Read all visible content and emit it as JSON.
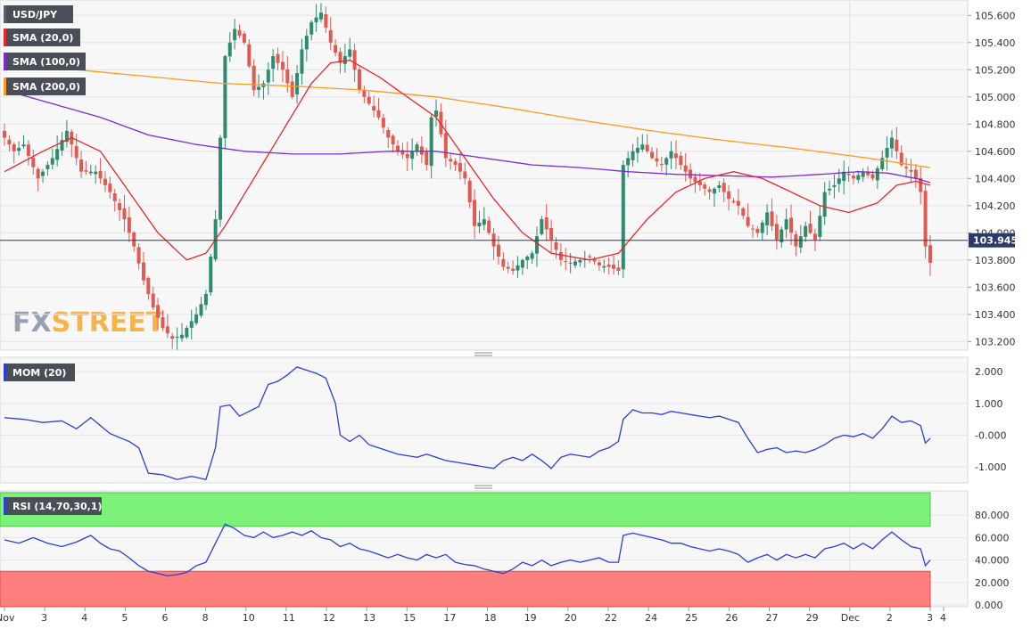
{
  "chart_data": [
    {
      "type": "candlestick",
      "title": "USD/JPY",
      "watermark": {
        "part1": "FX",
        "part2": "STREET"
      },
      "indicators": [
        "SMA (20,0)",
        "SMA (100,0)",
        "SMA (200,0)"
      ],
      "indicator_colors": [
        "#e8262a",
        "#7a2bd6",
        "#ff9a1f"
      ],
      "ylim": [
        103.15,
        105.7
      ],
      "y_ticks": [
        "105.600",
        "105.400",
        "105.200",
        "105.000",
        "104.800",
        "104.600",
        "104.400",
        "104.200",
        "104.000",
        "103.800",
        "103.600",
        "103.400",
        "103.200"
      ],
      "last_price": "103.945",
      "x_ticks": [
        "Nov",
        "3",
        "4",
        "5",
        "6",
        "8",
        "10",
        "11",
        "12",
        "13",
        "15",
        "17",
        "18",
        "19",
        "20",
        "22",
        "24",
        "25",
        "26",
        "27",
        "29",
        "Dec",
        "2",
        "3",
        "4"
      ],
      "up_color": "#2e8b6e",
      "down_color": "#e05a52",
      "anchors_close": [
        [
          0,
          104.7
        ],
        [
          2,
          104.6
        ],
        [
          4,
          104.65
        ],
        [
          7,
          104.4
        ],
        [
          10,
          104.55
        ],
        [
          13,
          104.75
        ],
        [
          16,
          104.45
        ],
        [
          19,
          104.45
        ],
        [
          22,
          104.3
        ],
        [
          25,
          104.1
        ],
        [
          27,
          103.9
        ],
        [
          29,
          103.65
        ],
        [
          31,
          103.45
        ],
        [
          33,
          103.3
        ],
        [
          35,
          103.22
        ],
        [
          37,
          103.25
        ],
        [
          40,
          103.4
        ],
        [
          42,
          103.55
        ],
        [
          44,
          104.1
        ],
        [
          46,
          105.3
        ],
        [
          48,
          105.5
        ],
        [
          50,
          105.4
        ],
        [
          52,
          105.05
        ],
        [
          54,
          105.1
        ],
        [
          56,
          105.3
        ],
        [
          58,
          105.2
        ],
        [
          60,
          105.0
        ],
        [
          62,
          105.35
        ],
        [
          64,
          105.55
        ],
        [
          66,
          105.62
        ],
        [
          68,
          105.4
        ],
        [
          70,
          105.25
        ],
        [
          72,
          105.35
        ],
        [
          74,
          105.05
        ],
        [
          76,
          104.95
        ],
        [
          78,
          104.85
        ],
        [
          80,
          104.7
        ],
        [
          82,
          104.6
        ],
        [
          84,
          104.55
        ],
        [
          86,
          104.65
        ],
        [
          88,
          104.5
        ],
        [
          89,
          104.85
        ],
        [
          90,
          104.9
        ],
        [
          92,
          104.55
        ],
        [
          94,
          104.5
        ],
        [
          96,
          104.4
        ],
        [
          98,
          104.05
        ],
        [
          100,
          104.1
        ],
        [
          102,
          103.9
        ],
        [
          104,
          103.75
        ],
        [
          106,
          103.72
        ],
        [
          108,
          103.8
        ],
        [
          110,
          103.85
        ],
        [
          112,
          104.1
        ],
        [
          114,
          103.95
        ],
        [
          116,
          103.8
        ],
        [
          118,
          103.78
        ],
        [
          120,
          103.8
        ],
        [
          122,
          103.82
        ],
        [
          124,
          103.76
        ],
        [
          126,
          103.75
        ],
        [
          128,
          103.72
        ],
        [
          129,
          104.5
        ],
        [
          131,
          104.6
        ],
        [
          133,
          104.65
        ],
        [
          135,
          104.55
        ],
        [
          137,
          104.5
        ],
        [
          139,
          104.6
        ],
        [
          141,
          104.5
        ],
        [
          143,
          104.4
        ],
        [
          145,
          104.35
        ],
        [
          147,
          104.3
        ],
        [
          149,
          104.35
        ],
        [
          151,
          104.25
        ],
        [
          153,
          104.2
        ],
        [
          155,
          104.05
        ],
        [
          157,
          104.0
        ],
        [
          159,
          104.15
        ],
        [
          161,
          103.95
        ],
        [
          163,
          104.1
        ],
        [
          165,
          103.9
        ],
        [
          167,
          104.05
        ],
        [
          169,
          103.95
        ],
        [
          171,
          104.3
        ],
        [
          173,
          104.35
        ],
        [
          175,
          104.45
        ],
        [
          177,
          104.4
        ],
        [
          179,
          104.45
        ],
        [
          181,
          104.4
        ],
        [
          183,
          104.55
        ],
        [
          185,
          104.7
        ],
        [
          187,
          104.5
        ],
        [
          189,
          104.45
        ],
        [
          190,
          104.4
        ],
        [
          191,
          104.3
        ],
        [
          192,
          103.9
        ],
        [
          193,
          103.78
        ]
      ],
      "sma20": [
        [
          0,
          104.45
        ],
        [
          8,
          104.6
        ],
        [
          14,
          104.7
        ],
        [
          20,
          104.6
        ],
        [
          26,
          104.3
        ],
        [
          32,
          104.0
        ],
        [
          38,
          103.8
        ],
        [
          42,
          103.85
        ],
        [
          46,
          104.05
        ],
        [
          52,
          104.4
        ],
        [
          58,
          104.75
        ],
        [
          64,
          105.1
        ],
        [
          68,
          105.25
        ],
        [
          72,
          105.27
        ],
        [
          78,
          105.15
        ],
        [
          84,
          105.0
        ],
        [
          90,
          104.85
        ],
        [
          96,
          104.55
        ],
        [
          102,
          104.25
        ],
        [
          108,
          104.0
        ],
        [
          114,
          103.85
        ],
        [
          122,
          103.8
        ],
        [
          128,
          103.85
        ],
        [
          134,
          104.1
        ],
        [
          140,
          104.3
        ],
        [
          146,
          104.4
        ],
        [
          152,
          104.45
        ],
        [
          158,
          104.4
        ],
        [
          164,
          104.3
        ],
        [
          170,
          104.2
        ],
        [
          176,
          104.15
        ],
        [
          182,
          104.22
        ],
        [
          186,
          104.35
        ],
        [
          190,
          104.38
        ],
        [
          193,
          104.35
        ]
      ],
      "sma100": [
        [
          0,
          105.05
        ],
        [
          10,
          104.95
        ],
        [
          20,
          104.85
        ],
        [
          30,
          104.72
        ],
        [
          40,
          104.65
        ],
        [
          50,
          104.6
        ],
        [
          60,
          104.58
        ],
        [
          70,
          104.58
        ],
        [
          80,
          104.6
        ],
        [
          90,
          104.6
        ],
        [
          100,
          104.55
        ],
        [
          110,
          104.5
        ],
        [
          120,
          104.48
        ],
        [
          130,
          104.45
        ],
        [
          140,
          104.43
        ],
        [
          150,
          104.42
        ],
        [
          160,
          104.41
        ],
        [
          170,
          104.43
        ],
        [
          178,
          104.45
        ],
        [
          184,
          104.44
        ],
        [
          190,
          104.4
        ],
        [
          193,
          104.37
        ]
      ],
      "sma200": [
        [
          0,
          105.2
        ],
        [
          15,
          105.2
        ],
        [
          30,
          105.15
        ],
        [
          45,
          105.1
        ],
        [
          60,
          105.08
        ],
        [
          75,
          105.05
        ],
        [
          90,
          105.0
        ],
        [
          105,
          104.92
        ],
        [
          120,
          104.83
        ],
        [
          135,
          104.75
        ],
        [
          150,
          104.68
        ],
        [
          165,
          104.62
        ],
        [
          180,
          104.55
        ],
        [
          193,
          104.48
        ]
      ]
    },
    {
      "type": "line",
      "title": "MOM (20)",
      "color": "#2b3fd6",
      "ylim": [
        -1.45,
        2.4
      ],
      "y_ticks": [
        "2.000",
        "1.000",
        "-0.000",
        "-1.000"
      ],
      "anchors": [
        [
          0,
          0.55
        ],
        [
          4,
          0.5
        ],
        [
          8,
          0.4
        ],
        [
          12,
          0.45
        ],
        [
          15,
          0.2
        ],
        [
          18,
          0.55
        ],
        [
          22,
          0.05
        ],
        [
          26,
          -0.2
        ],
        [
          28,
          -0.4
        ],
        [
          30,
          -1.2
        ],
        [
          33,
          -1.25
        ],
        [
          36,
          -1.4
        ],
        [
          39,
          -1.3
        ],
        [
          42,
          -1.4
        ],
        [
          44,
          -0.4
        ],
        [
          45,
          0.9
        ],
        [
          47,
          0.95
        ],
        [
          49,
          0.6
        ],
        [
          51,
          0.75
        ],
        [
          53,
          0.9
        ],
        [
          55,
          1.6
        ],
        [
          57,
          1.7
        ],
        [
          59,
          1.9
        ],
        [
          61,
          2.15
        ],
        [
          63,
          2.05
        ],
        [
          65,
          1.95
        ],
        [
          67,
          1.8
        ],
        [
          69,
          1.0
        ],
        [
          70,
          0.0
        ],
        [
          72,
          -0.2
        ],
        [
          74,
          0.0
        ],
        [
          76,
          -0.3
        ],
        [
          78,
          -0.4
        ],
        [
          82,
          -0.6
        ],
        [
          86,
          -0.7
        ],
        [
          88,
          -0.6
        ],
        [
          92,
          -0.8
        ],
        [
          96,
          -0.9
        ],
        [
          100,
          -1.0
        ],
        [
          102,
          -1.05
        ],
        [
          104,
          -0.8
        ],
        [
          106,
          -0.7
        ],
        [
          108,
          -0.8
        ],
        [
          110,
          -0.6
        ],
        [
          112,
          -0.8
        ],
        [
          114,
          -1.05
        ],
        [
          116,
          -0.7
        ],
        [
          118,
          -0.6
        ],
        [
          120,
          -0.65
        ],
        [
          122,
          -0.7
        ],
        [
          124,
          -0.5
        ],
        [
          126,
          -0.4
        ],
        [
          128,
          -0.2
        ],
        [
          129,
          0.5
        ],
        [
          131,
          0.8
        ],
        [
          133,
          0.7
        ],
        [
          135,
          0.7
        ],
        [
          137,
          0.65
        ],
        [
          139,
          0.75
        ],
        [
          141,
          0.7
        ],
        [
          143,
          0.65
        ],
        [
          145,
          0.6
        ],
        [
          147,
          0.55
        ],
        [
          149,
          0.6
        ],
        [
          151,
          0.5
        ],
        [
          153,
          0.4
        ],
        [
          155,
          -0.1
        ],
        [
          157,
          -0.55
        ],
        [
          159,
          -0.45
        ],
        [
          161,
          -0.4
        ],
        [
          163,
          -0.55
        ],
        [
          165,
          -0.5
        ],
        [
          167,
          -0.55
        ],
        [
          169,
          -0.45
        ],
        [
          171,
          -0.3
        ],
        [
          173,
          -0.1
        ],
        [
          175,
          0.0
        ],
        [
          177,
          -0.05
        ],
        [
          179,
          0.05
        ],
        [
          181,
          -0.1
        ],
        [
          183,
          0.2
        ],
        [
          185,
          0.6
        ],
        [
          187,
          0.4
        ],
        [
          189,
          0.45
        ],
        [
          191,
          0.3
        ],
        [
          192,
          -0.25
        ],
        [
          193,
          -0.1
        ]
      ]
    },
    {
      "type": "line",
      "title": "RSI (14,70,30,1)",
      "color": "#2b3fd6",
      "overbought": 70,
      "oversold": 30,
      "ylim": [
        0,
        100
      ],
      "y_ticks": [
        "80.000",
        "60.000",
        "40.000",
        "20.000",
        "0.000"
      ],
      "anchors": [
        [
          0,
          58
        ],
        [
          3,
          55
        ],
        [
          6,
          60
        ],
        [
          9,
          55
        ],
        [
          12,
          52
        ],
        [
          15,
          56
        ],
        [
          18,
          62
        ],
        [
          20,
          55
        ],
        [
          22,
          50
        ],
        [
          24,
          48
        ],
        [
          26,
          42
        ],
        [
          28,
          35
        ],
        [
          30,
          30
        ],
        [
          32,
          28
        ],
        [
          34,
          26
        ],
        [
          36,
          27
        ],
        [
          38,
          29
        ],
        [
          40,
          35
        ],
        [
          42,
          38
        ],
        [
          44,
          55
        ],
        [
          46,
          72
        ],
        [
          48,
          68
        ],
        [
          50,
          62
        ],
        [
          52,
          60
        ],
        [
          54,
          65
        ],
        [
          56,
          60
        ],
        [
          58,
          62
        ],
        [
          60,
          65
        ],
        [
          62,
          62
        ],
        [
          64,
          66
        ],
        [
          66,
          60
        ],
        [
          68,
          58
        ],
        [
          70,
          52
        ],
        [
          72,
          55
        ],
        [
          74,
          50
        ],
        [
          76,
          48
        ],
        [
          78,
          45
        ],
        [
          80,
          42
        ],
        [
          82,
          45
        ],
        [
          84,
          42
        ],
        [
          86,
          40
        ],
        [
          88,
          45
        ],
        [
          90,
          42
        ],
        [
          92,
          45
        ],
        [
          94,
          38
        ],
        [
          96,
          36
        ],
        [
          98,
          35
        ],
        [
          100,
          32
        ],
        [
          102,
          30
        ],
        [
          104,
          28
        ],
        [
          106,
          32
        ],
        [
          108,
          38
        ],
        [
          110,
          35
        ],
        [
          112,
          40
        ],
        [
          114,
          35
        ],
        [
          116,
          38
        ],
        [
          118,
          40
        ],
        [
          120,
          38
        ],
        [
          122,
          40
        ],
        [
          124,
          42
        ],
        [
          126,
          38
        ],
        [
          128,
          38
        ],
        [
          129,
          62
        ],
        [
          131,
          64
        ],
        [
          133,
          62
        ],
        [
          135,
          60
        ],
        [
          137,
          58
        ],
        [
          139,
          55
        ],
        [
          141,
          55
        ],
        [
          143,
          52
        ],
        [
          145,
          50
        ],
        [
          147,
          48
        ],
        [
          149,
          50
        ],
        [
          151,
          48
        ],
        [
          153,
          45
        ],
        [
          155,
          38
        ],
        [
          157,
          42
        ],
        [
          159,
          45
        ],
        [
          161,
          40
        ],
        [
          163,
          45
        ],
        [
          165,
          42
        ],
        [
          167,
          45
        ],
        [
          169,
          42
        ],
        [
          171,
          50
        ],
        [
          173,
          52
        ],
        [
          175,
          55
        ],
        [
          177,
          50
        ],
        [
          179,
          55
        ],
        [
          181,
          50
        ],
        [
          183,
          58
        ],
        [
          185,
          65
        ],
        [
          187,
          58
        ],
        [
          189,
          52
        ],
        [
          191,
          50
        ],
        [
          192,
          35
        ],
        [
          193,
          40
        ]
      ]
    }
  ]
}
